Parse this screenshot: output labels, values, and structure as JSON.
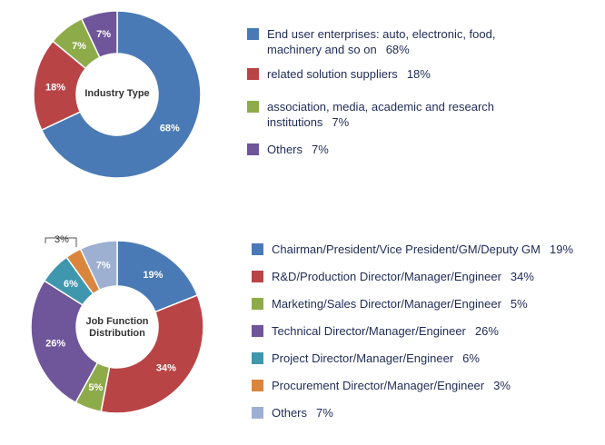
{
  "chart_data": [
    {
      "type": "pie",
      "title": "Industry Type",
      "slices": [
        {
          "label": "End user enterprises: auto, electronic, food, machinery and so on",
          "value": 68,
          "display": "68%",
          "color": "#4a7ab5"
        },
        {
          "label": " related solution suppliers",
          "value": 18,
          "display": "18%",
          "color": "#b94446"
        },
        {
          "label": " association, media, academic and research institutions",
          "value": 7,
          "display": "7%",
          "color": "#8eab4a"
        },
        {
          "label": "Others",
          "value": 7,
          "display": "7%",
          "color": "#6f559a"
        }
      ]
    },
    {
      "type": "pie",
      "title": "Job Function Distribution",
      "slices": [
        {
          "label": "Chairman/President/Vice President/GM/Deputy GM",
          "value": 19,
          "display": "19%",
          "color": "#4a7ab5"
        },
        {
          "label": "R&D/Production Director/Manager/Engineer",
          "value": 34,
          "display": "34%",
          "color": "#b94446"
        },
        {
          "label": "Marketing/Sales Director/Manager/Engineer",
          "value": 5,
          "display": "5%",
          "color": "#8eab4a"
        },
        {
          "label": "Technical Director/Manager/Engineer",
          "value": 26,
          "display": "26%",
          "color": "#6f559a"
        },
        {
          "label": "Project Director/Manager/Engineer",
          "value": 6,
          "display": "6%",
          "color": "#3f97ad"
        },
        {
          "label": "Procurement Director/Manager/Engineer",
          "value": 3,
          "display": "3%",
          "color": "#d9853e"
        },
        {
          "label": "Others",
          "value": 7,
          "display": "7%",
          "color": "#9db0d2"
        }
      ]
    }
  ]
}
